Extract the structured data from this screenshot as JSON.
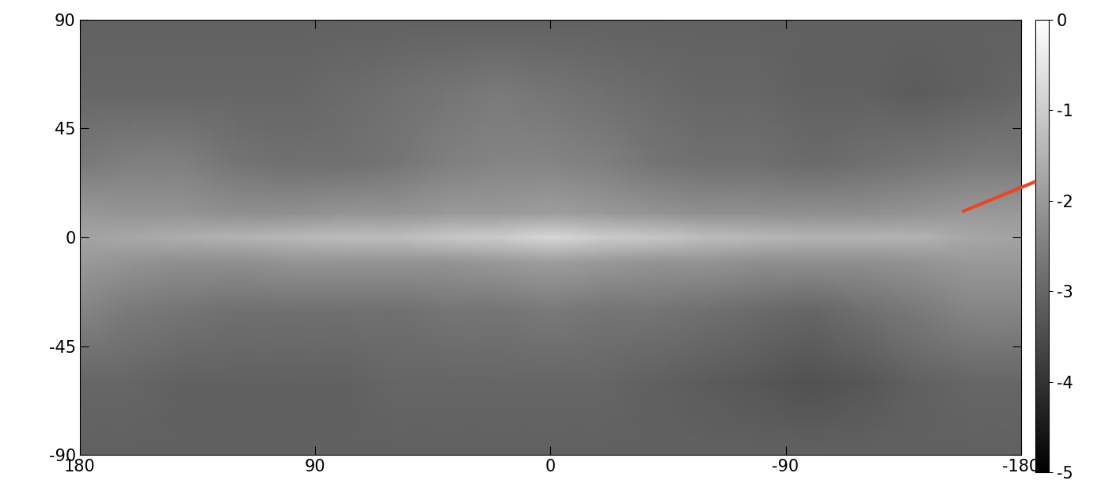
{
  "chart_data": {
    "type": "heatmap",
    "color": "gray",
    "x": [
      180,
      160,
      140,
      120,
      100,
      80,
      60,
      40,
      20,
      0,
      -20,
      -40,
      -60,
      -80,
      -100,
      -120,
      -140,
      -160,
      -180
    ],
    "y": [
      -90,
      -60,
      -30,
      -10,
      0,
      10,
      30,
      60,
      90
    ],
    "cells": [
      [
        -3.1,
        -3.1,
        -3.1,
        -3.1,
        -3.1,
        -3.1,
        -3.1,
        -3.1,
        -3.1,
        -3.1,
        -3.1,
        -3.1,
        -3.1,
        -3.1,
        -3.1,
        -3.1,
        -3.1,
        -3.1,
        -3.1
      ],
      [
        -3.0,
        -3.0,
        -3.1,
        -3.1,
        -3.1,
        -3.1,
        -3.0,
        -3.0,
        -3.0,
        -3.0,
        -3.0,
        -3.1,
        -3.2,
        -3.3,
        -3.4,
        -3.3,
        -3.1,
        -3.0,
        -3.0
      ],
      [
        -2.4,
        -2.6,
        -2.7,
        -2.8,
        -2.8,
        -2.8,
        -2.8,
        -2.7,
        -2.7,
        -2.6,
        -2.7,
        -2.7,
        -2.8,
        -2.9,
        -3.0,
        -2.8,
        -2.6,
        -2.4,
        -2.4
      ],
      [
        -2.0,
        -2.1,
        -2.2,
        -2.2,
        -2.1,
        -2.1,
        -2.1,
        -2.1,
        -2.0,
        -1.9,
        -2.0,
        -2.1,
        -2.1,
        -2.2,
        -2.2,
        -2.2,
        -2.1,
        -2.0,
        -2.0
      ],
      [
        -1.8,
        -1.7,
        -1.6,
        -1.5,
        -1.4,
        -1.3,
        -1.3,
        -1.1,
        -1.0,
        -0.8,
        -1.0,
        -1.1,
        -1.3,
        -1.4,
        -1.5,
        -1.5,
        -1.5,
        -1.7,
        -1.8
      ],
      [
        -2.0,
        -2.1,
        -2.1,
        -2.2,
        -2.2,
        -2.1,
        -2.1,
        -2.0,
        -2.0,
        -1.9,
        -2.0,
        -2.1,
        -2.2,
        -2.2,
        -2.2,
        -2.2,
        -2.1,
        -2.0,
        -2.0
      ],
      [
        -2.6,
        -2.5,
        -2.5,
        -2.7,
        -2.8,
        -2.8,
        -2.7,
        -2.5,
        -2.4,
        -2.4,
        -2.5,
        -2.7,
        -2.8,
        -2.8,
        -2.9,
        -2.8,
        -2.7,
        -2.6,
        -2.6
      ],
      [
        -3.0,
        -3.0,
        -3.0,
        -3.0,
        -3.0,
        -2.9,
        -2.8,
        -2.7,
        -2.6,
        -2.7,
        -2.8,
        -2.9,
        -3.0,
        -3.0,
        -3.1,
        -3.1,
        -3.2,
        -3.1,
        -3.0
      ],
      [
        -3.1,
        -3.1,
        -3.1,
        -3.1,
        -3.1,
        -3.1,
        -3.1,
        -3.1,
        -3.1,
        -3.1,
        -3.1,
        -3.1,
        -3.1,
        -3.1,
        -3.1,
        -3.1,
        -3.1,
        -3.1,
        -3.1
      ]
    ],
    "xlim": [
      180,
      -180
    ],
    "ylim": [
      -90,
      90
    ],
    "xticks": [
      180,
      90,
      0,
      -90,
      -180
    ],
    "yticks": [
      -90,
      -45,
      0,
      45,
      90
    ],
    "colorbar_range": [
      -5,
      0
    ],
    "colorbar_ticks": [
      0,
      -1,
      -2,
      -3,
      -4,
      -5
    ]
  }
}
